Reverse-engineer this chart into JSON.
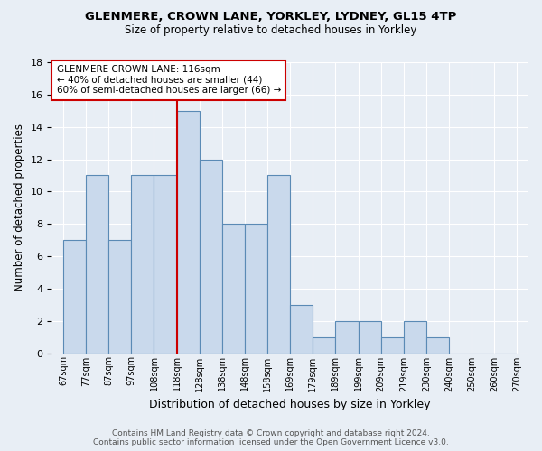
{
  "title1": "GLENMERE, CROWN LANE, YORKLEY, LYDNEY, GL15 4TP",
  "title2": "Size of property relative to detached houses in Yorkley",
  "xlabel": "Distribution of detached houses by size in Yorkley",
  "ylabel": "Number of detached properties",
  "categories": [
    "67sqm",
    "77sqm",
    "87sqm",
    "97sqm",
    "108sqm",
    "118sqm",
    "128sqm",
    "138sqm",
    "148sqm",
    "158sqm",
    "169sqm",
    "179sqm",
    "189sqm",
    "199sqm",
    "209sqm",
    "219sqm",
    "230sqm",
    "240sqm",
    "250sqm",
    "260sqm",
    "270sqm"
  ],
  "values": [
    7,
    11,
    7,
    11,
    11,
    15,
    12,
    8,
    8,
    11,
    3,
    1,
    2,
    2,
    1,
    2,
    1,
    0,
    0,
    0
  ],
  "bar_color": "#c9d9ec",
  "bar_edge_color": "#5a8ab5",
  "vline_index": 5,
  "vline_color": "#cc0000",
  "annotation_title": "GLENMERE CROWN LANE: 116sqm",
  "annotation_line1": "← 40% of detached houses are smaller (44)",
  "annotation_line2": "60% of semi-detached houses are larger (66) →",
  "annotation_box_color": "#ffffff",
  "annotation_box_edge": "#cc0000",
  "ylim": [
    0,
    18
  ],
  "yticks": [
    0,
    2,
    4,
    6,
    8,
    10,
    12,
    14,
    16,
    18
  ],
  "footer1": "Contains HM Land Registry data © Crown copyright and database right 2024.",
  "footer2": "Contains public sector information licensed under the Open Government Licence v3.0.",
  "bg_color": "#e8eef5",
  "plot_bg_color": "#e8eef5",
  "title1_fontsize": 9.5,
  "title2_fontsize": 8.5
}
